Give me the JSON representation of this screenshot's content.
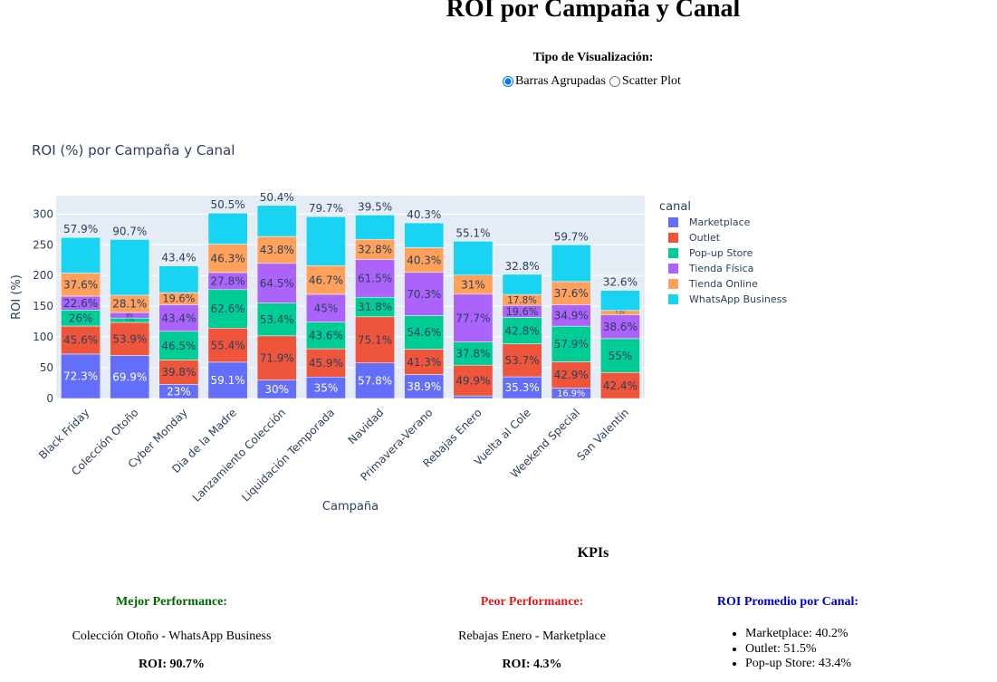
{
  "page": {
    "title": "ROI por Campaña y Canal",
    "viz_label": "Tipo de Visualización:",
    "viz_options": [
      {
        "label": "Barras Agrupadas",
        "checked": true
      },
      {
        "label": "Scatter Plot",
        "checked": false
      }
    ]
  },
  "kpis": {
    "heading": "KPIs",
    "best": {
      "title": "Mejor Performance:",
      "subject": "Colección Otoño - WhatsApp Business",
      "roi": "ROI: 90.7%",
      "color": "#006400"
    },
    "worst": {
      "title": "Peor Performance:",
      "subject": "Rebajas Enero - Marketplace",
      "roi": "ROI: 4.3%",
      "color": "#e31a1c"
    },
    "average": {
      "title": "ROI Promedio por Canal:",
      "color": "#0000cd",
      "items": [
        "Marketplace: 40.2%",
        "Outlet: 51.5%",
        "Pop-up Store: 43.4%"
      ]
    }
  },
  "chart_data": {
    "type": "bar",
    "stacked": true,
    "title": "ROI (%) por Campaña y Canal",
    "xlabel": "Campaña",
    "ylabel": "ROI (%)",
    "ylim": [
      0,
      330
    ],
    "yticks": [
      0,
      50,
      100,
      150,
      200,
      250,
      300
    ],
    "grid": true,
    "legend_title": "canal",
    "legend_position": "right",
    "categories": [
      "Black Friday",
      "Colección Otoño",
      "Cyber Monday",
      "Dia de la Madre",
      "Lanzamiento Colección",
      "Liquidación Temporada",
      "Navidad",
      "Primavera-Verano",
      "Rebajas Enero",
      "Vuelta al Cole",
      "Weekend Special",
      "San Valentín"
    ],
    "series": [
      {
        "name": "Marketplace",
        "color": "#636efa",
        "values": [
          72.3,
          69.9,
          23,
          59.1,
          30,
          35,
          57.8,
          38.9,
          4.3,
          35.3,
          16.9,
          0
        ]
      },
      {
        "name": "Outlet",
        "color": "#ef553b",
        "values": [
          45.6,
          53.9,
          39.8,
          55.4,
          71.9,
          45.9,
          75.1,
          41.3,
          49.9,
          53.7,
          42.9,
          42.4
        ]
      },
      {
        "name": "Pop-up Store",
        "color": "#00cc96",
        "values": [
          26,
          7.1,
          46.5,
          62.6,
          53.4,
          43.6,
          31.8,
          54.6,
          37.8,
          42.8,
          57.9,
          55
        ]
      },
      {
        "name": "Tienda Física",
        "color": "#ab63fa",
        "values": [
          22.6,
          9,
          43.4,
          27.8,
          64.5,
          45,
          61.5,
          70.3,
          77.7,
          19.6,
          34.9,
          38.6
        ]
      },
      {
        "name": "Tienda Online",
        "color": "#ffa15a",
        "values": [
          37.6,
          28.1,
          19.6,
          46.3,
          43.8,
          46.7,
          32.8,
          40.3,
          31,
          17.8,
          37.6,
          7.2
        ]
      },
      {
        "name": "WhatsApp Business",
        "color": "#19d3f3",
        "values": [
          57.9,
          90.7,
          43.4,
          50.5,
          50.4,
          79.7,
          39.5,
          40.3,
          55.1,
          32.8,
          59.7,
          32.6
        ]
      }
    ],
    "label_texts": [
      [
        "72.3%",
        "69.9%",
        "23%",
        "59.1%",
        "30%",
        "35%",
        "57.8%",
        "38.9%",
        "4.3%",
        "35.3%",
        "16.9%",
        ""
      ],
      [
        "45.6%",
        "53.9%",
        "39.8%",
        "55.4%",
        "71.9%",
        "45.9%",
        "75.1%",
        "41.3%",
        "49.9%",
        "53.7%",
        "42.9%",
        "42.4%"
      ],
      [
        "26%",
        "7.1%",
        "46.5%",
        "62.6%",
        "53.4%",
        "43.6%",
        "31.8%",
        "54.6%",
        "37.8%",
        "42.8%",
        "57.9%",
        "55%"
      ],
      [
        "22.6%",
        "9%",
        "43.4%",
        "27.8%",
        "64.5%",
        "45%",
        "61.5%",
        "70.3%",
        "77.7%",
        "19.6%",
        "34.9%",
        "38.6%"
      ],
      [
        "37.6%",
        "28.1%",
        "19.6%",
        "46.3%",
        "43.8%",
        "46.7%",
        "32.8%",
        "40.3%",
        "31%",
        "17.8%",
        "37.6%",
        "7.2%"
      ],
      [
        "57.9%",
        "90.7%",
        "43.4%",
        "50.5%",
        "50.4%",
        "79.7%",
        "39.5%",
        "40.3%",
        "55.1%",
        "32.8%",
        "59.7%",
        "32.6%"
      ]
    ]
  }
}
